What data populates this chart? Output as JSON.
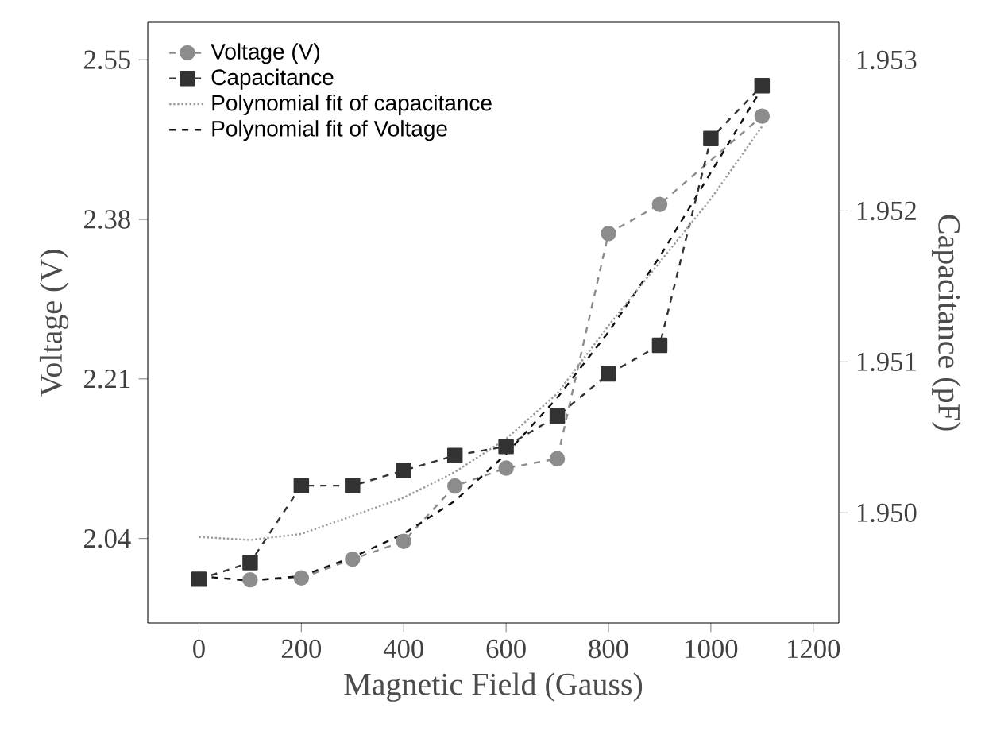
{
  "chart_data": {
    "type": "line",
    "xlabel": "Magnetic Field (Gauss)",
    "ylabel": "Voltage (V)",
    "y2label": "Capacitance (pF)",
    "x": [
      0,
      100,
      200,
      300,
      400,
      500,
      600,
      700,
      800,
      900,
      1000,
      1100
    ],
    "xlim": [
      -100,
      1250
    ],
    "xticks": [
      0,
      200,
      400,
      600,
      800,
      1000,
      1200
    ],
    "ylim": [
      1.95,
      2.59
    ],
    "yticks": [
      2.04,
      2.21,
      2.38,
      2.55
    ],
    "y2lim": [
      1.94927,
      1.95325
    ],
    "y2ticks": [
      {
        "value": 1.95,
        "label": "1.950"
      },
      1.951,
      1.952,
      1.953
    ],
    "legend": "top left",
    "series": [
      {
        "name": "Voltage (V)",
        "color": "#8c8c8c",
        "marker": "circle",
        "line_style": "dashed",
        "values": [
          null,
          1.996,
          1.998,
          2.018,
          2.037,
          2.096,
          2.115,
          2.125,
          2.365,
          2.396,
          null,
          2.49
        ]
      },
      {
        "name": "Capacitance",
        "color": "#333333",
        "marker": "square",
        "line_style": "dashed",
        "axis": "y2",
        "values": [
          1.94956,
          1.94967,
          1.95018,
          1.95018,
          1.95028,
          1.95038,
          1.95044,
          1.95064,
          1.95092,
          1.95111,
          1.95248,
          1.95283
        ]
      },
      {
        "name": "Polynomial fit of capacitance",
        "color": "#999999",
        "marker": "none",
        "line_style": "dotted",
        "axis": "y2",
        "values": [
          1.94984,
          1.94982,
          1.94986,
          1.94998,
          1.9501,
          1.95027,
          1.95049,
          1.95079,
          1.95124,
          1.95166,
          1.95208,
          1.95256
        ]
      },
      {
        "name": "Polynomial fit of Voltage",
        "color": "#111111",
        "marker": "none",
        "line_style": "dashed",
        "values": [
          2.0,
          1.995,
          2.0,
          2.02,
          2.045,
          2.08,
          2.13,
          2.19,
          2.26,
          2.34,
          2.43,
          2.52
        ]
      }
    ]
  }
}
